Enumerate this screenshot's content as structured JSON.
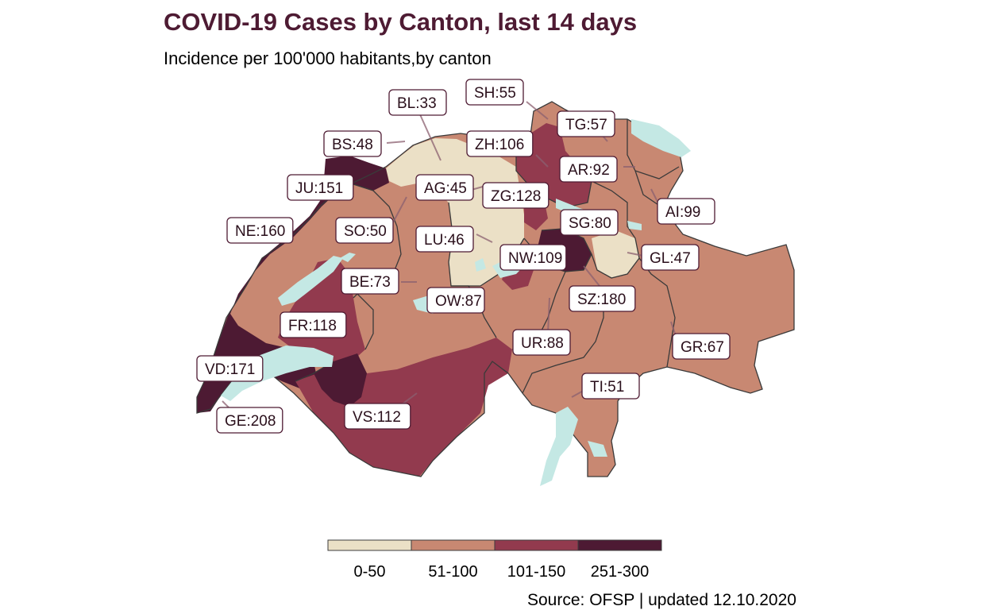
{
  "title": "COVID-19 Cases by Canton, last 14 days",
  "subtitle": "Incidence per 100'000 habitants,by canton",
  "source": "Source: OFSP | updated 12.10.2020",
  "colors": {
    "c0_50": "#ebe0c6",
    "c51_100": "#c88872",
    "c101_150": "#923a4e",
    "c251_300": "#4d1a33",
    "lake": "#c4e8e4"
  },
  "legend": [
    {
      "label": "0-50",
      "color": "#ebe0c6"
    },
    {
      "label": "51-100",
      "color": "#c88872"
    },
    {
      "label": "101-150",
      "color": "#923a4e"
    },
    {
      "label": "251-300",
      "color": "#4d1a33"
    }
  ],
  "cantons": [
    {
      "code": "BL",
      "value": 33,
      "text": "BL:33"
    },
    {
      "code": "SH",
      "value": 55,
      "text": "SH:55"
    },
    {
      "code": "TG",
      "value": 57,
      "text": "TG:57"
    },
    {
      "code": "BS",
      "value": 48,
      "text": "BS:48"
    },
    {
      "code": "ZH",
      "value": 106,
      "text": "ZH:106"
    },
    {
      "code": "AR",
      "value": 92,
      "text": "AR:92"
    },
    {
      "code": "JU",
      "value": 151,
      "text": "JU:151"
    },
    {
      "code": "AG",
      "value": 45,
      "text": "AG:45"
    },
    {
      "code": "ZG",
      "value": 128,
      "text": "ZG:128"
    },
    {
      "code": "AI",
      "value": 99,
      "text": "AI:99"
    },
    {
      "code": "SG",
      "value": 80,
      "text": "SG:80"
    },
    {
      "code": "NE",
      "value": 160,
      "text": "NE:160"
    },
    {
      "code": "SO",
      "value": 50,
      "text": "SO:50"
    },
    {
      "code": "LU",
      "value": 46,
      "text": "LU:46"
    },
    {
      "code": "NW",
      "value": 109,
      "text": "NW:109"
    },
    {
      "code": "GL",
      "value": 47,
      "text": "GL:47"
    },
    {
      "code": "BE",
      "value": 73,
      "text": "BE:73"
    },
    {
      "code": "OW",
      "value": 87,
      "text": "OW:87"
    },
    {
      "code": "SZ",
      "value": 180,
      "text": "SZ:180"
    },
    {
      "code": "FR",
      "value": 118,
      "text": "FR:118"
    },
    {
      "code": "UR",
      "value": 88,
      "text": "UR:88"
    },
    {
      "code": "GR",
      "value": 67,
      "text": "GR:67"
    },
    {
      "code": "VD",
      "value": 171,
      "text": "VD:171"
    },
    {
      "code": "TI",
      "value": 51,
      "text": "TI:51"
    },
    {
      "code": "GE",
      "value": 208,
      "text": "GE:208"
    },
    {
      "code": "VS",
      "value": 112,
      "text": "VS:112"
    }
  ]
}
